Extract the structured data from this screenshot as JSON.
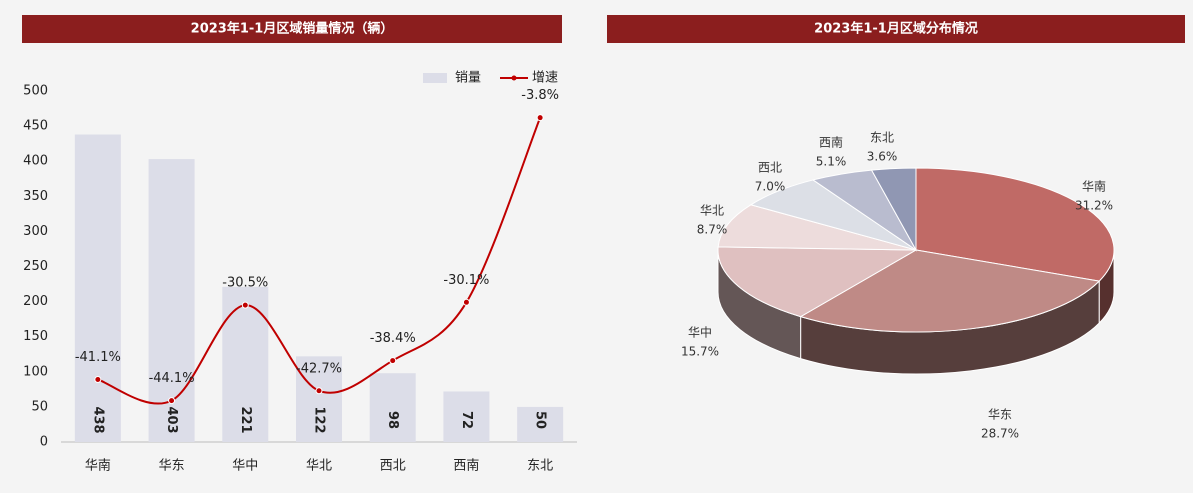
{
  "chart_data": [
    {
      "type": "bar",
      "title": "2023年1-1月区域销量情况（辆）",
      "categories": [
        "华南",
        "华东",
        "华中",
        "华北",
        "西北",
        "西南",
        "东北"
      ],
      "series": [
        {
          "name": "销量",
          "color": "#dcdde8",
          "values": [
            438,
            403,
            221,
            122,
            98,
            72,
            50
          ]
        },
        {
          "name": "增速",
          "type": "line",
          "axis": "y2",
          "color": "#c00000",
          "values": [
            -41.1,
            -44.1,
            -30.5,
            -42.7,
            -38.4,
            -30.1,
            -3.8
          ],
          "value_labels": [
            "-41.1%",
            "-44.1%",
            "-30.5%",
            "-42.7%",
            "-38.4%",
            "-30.1%",
            "-3.8%"
          ]
        }
      ],
      "ylim": [
        0,
        500
      ],
      "yticks": [
        0,
        50,
        100,
        150,
        200,
        250,
        300,
        350,
        400,
        450,
        500
      ],
      "y2lim": [
        -50,
        0
      ],
      "legend": "top-right"
    },
    {
      "type": "pie",
      "title": "2023年1-1月区域分布情况",
      "categories": [
        "华南",
        "华东",
        "华中",
        "华北",
        "西北",
        "西南",
        "东北"
      ],
      "values": [
        31.2,
        28.7,
        15.7,
        8.7,
        7.0,
        5.1,
        3.6
      ],
      "value_labels": [
        "31.2%",
        "28.7%",
        "15.7%",
        "8.7%",
        "7.0%",
        "5.1%",
        "3.6%"
      ],
      "colors": [
        "#c06a66",
        "#bf8a86",
        "#dfc0c0",
        "#eddcdc",
        "#dcdfe6",
        "#b9bccf",
        "#9097b3"
      ]
    }
  ]
}
